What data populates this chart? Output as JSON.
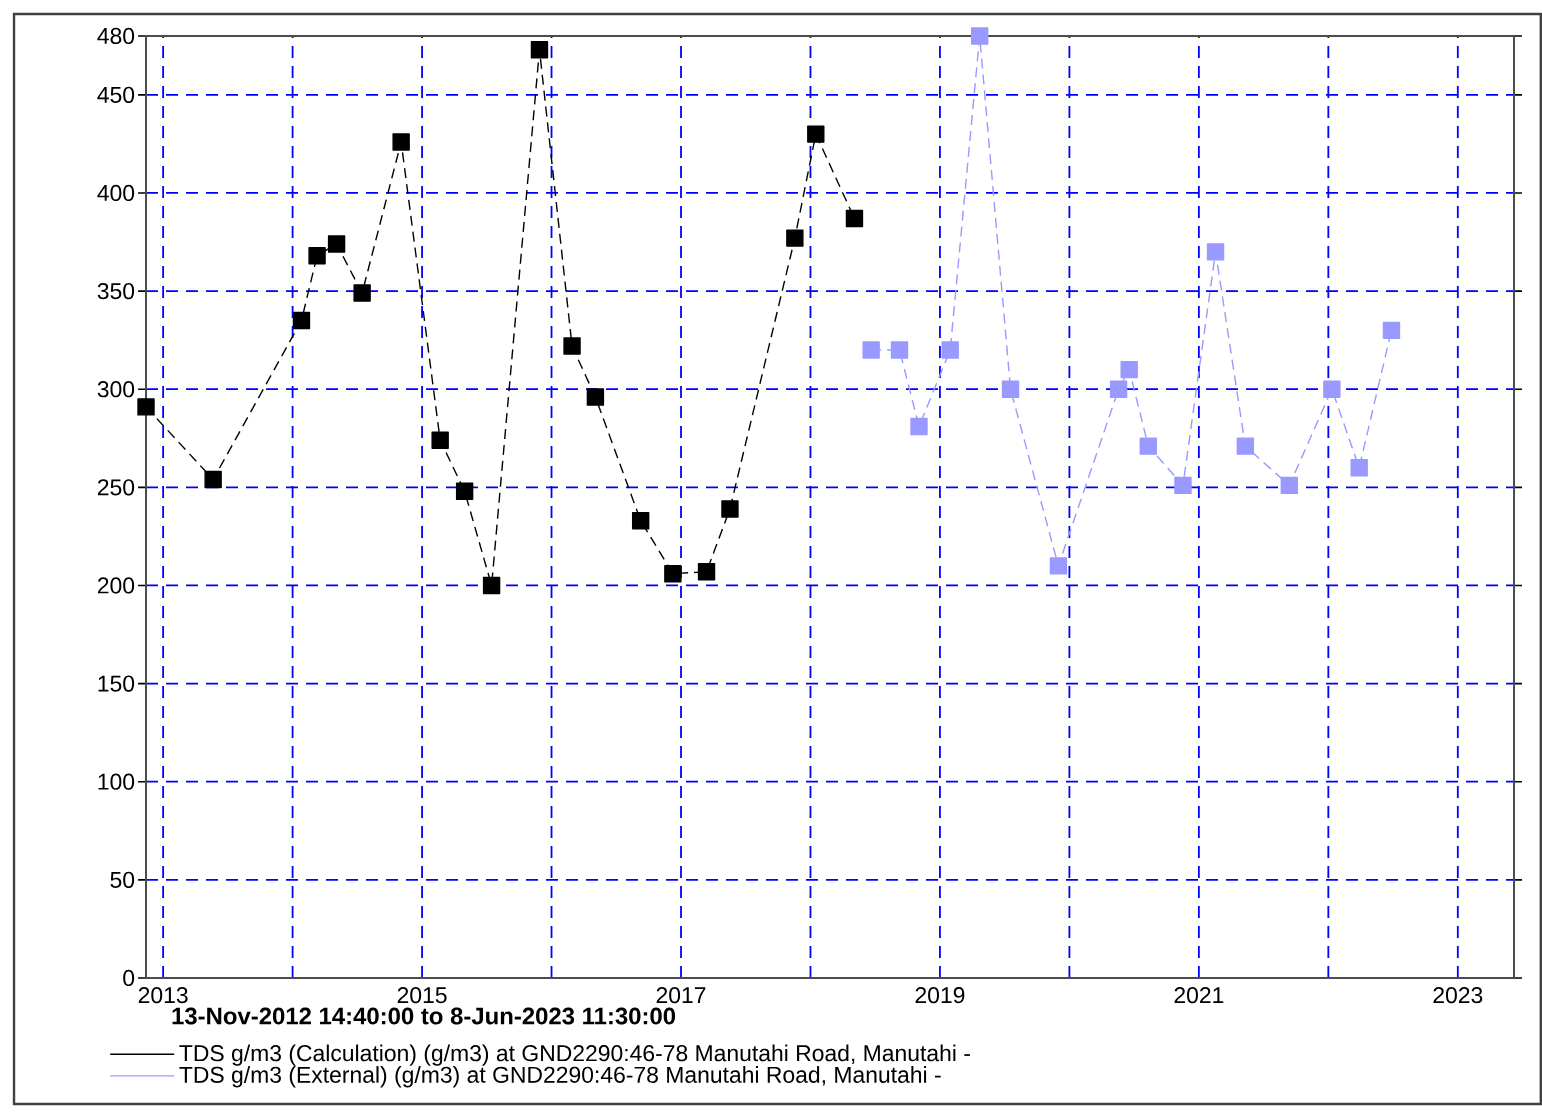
{
  "chart_data": {
    "type": "line",
    "xlabel": "**13-Nov-2012 14:40:00 to  8-Jun-2023 11:30:00**",
    "series": [
      {
        "name": "TDS g/m3 (Calculation) (g/m3) at GND2290:46-78 Manutahi Road, Manutahi -",
        "color": "#000000",
        "x": [
          "2012-11-13T14:40",
          "2013-05-22",
          "2014-01-26",
          "2014-03-11",
          "2014-05-05",
          "2014-07-16",
          "2014-11-03",
          "2015-02-21",
          "2015-05-01",
          "2015-07-16",
          "2015-11-28",
          "2016-02-28",
          "2016-05-04",
          "2016-09-09",
          "2016-12-09",
          "2017-03-14",
          "2017-05-19",
          "2017-11-18",
          "2018-01-16",
          "2018-05-05"
        ],
        "values": [
          291,
          254,
          335,
          368,
          374,
          349,
          426,
          274,
          248,
          200,
          473,
          322,
          296,
          233,
          206,
          207,
          239,
          377,
          430,
          387
        ]
      },
      {
        "name": "TDS g/m3 (External) (g/m3) at GND2290:46-78 Manutahi Road, Manutahi -",
        "color": "#9999ff",
        "x": [
          "2018-06-21",
          "2018-09-09",
          "2018-11-03",
          "2019-01-30",
          "2019-04-23",
          "2019-07-19",
          "2019-12-01",
          "2020-05-19",
          "2020-06-18",
          "2020-08-11",
          "2020-11-17",
          "2021-02-17",
          "2021-05-12",
          "2021-09-13",
          "2022-01-11",
          "2022-03-29",
          "2022-06-28"
        ],
        "values": [
          320,
          320,
          281,
          320,
          480,
          300,
          210,
          300,
          310,
          271,
          251,
          370,
          271,
          251,
          300,
          260,
          330
        ]
      }
    ],
    "xlim": [
      "2012-11-13T14:40",
      "2023-06-08T11:30"
    ],
    "xticks": [
      {
        "value": "2013",
        "label": "2013"
      },
      {
        "value": "2014",
        "label": null
      },
      {
        "value": "2015",
        "label": "2015"
      },
      {
        "value": "2016",
        "label": null
      },
      {
        "value": "2017",
        "label": "2017"
      },
      {
        "value": "2018",
        "label": null
      },
      {
        "value": "2019",
        "label": "2019"
      },
      {
        "value": "2020",
        "label": null
      },
      {
        "value": "2021",
        "label": "2021"
      },
      {
        "value": "2022",
        "label": null
      },
      {
        "value": "2023",
        "label": "2023"
      }
    ],
    "ylim": [
      0,
      480
    ],
    "yticks": [
      0,
      50,
      100,
      150,
      200,
      250,
      300,
      350,
      400,
      450,
      480
    ],
    "grid": true,
    "legend": "bottom",
    "marker": "square",
    "line_style": "dashed"
  }
}
